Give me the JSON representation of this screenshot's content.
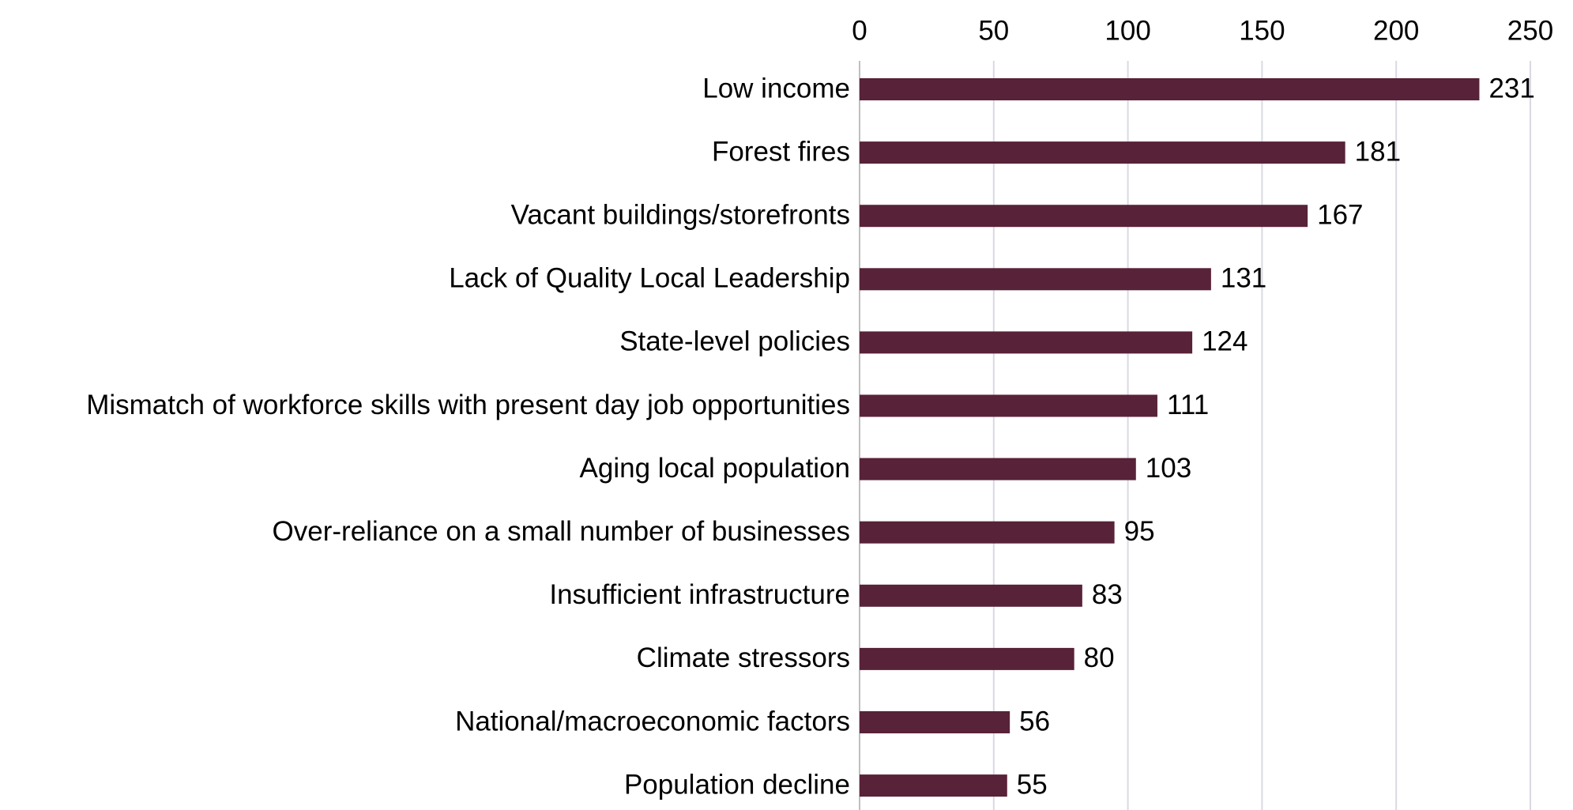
{
  "chart_data": {
    "type": "barh",
    "categories": [
      "Low income",
      "Forest fires",
      "Vacant buildings/storefronts",
      "Lack of Quality Local Leadership",
      "State-level policies",
      "Mismatch of workforce skills with present day job opportunities",
      "Aging local population",
      "Over-reliance on a small number of businesses",
      "Insufficient infrastructure",
      "Climate stressors",
      "National/macroeconomic factors",
      "Population decline"
    ],
    "values": [
      231,
      181,
      167,
      131,
      124,
      111,
      103,
      95,
      83,
      80,
      56,
      55
    ],
    "color": "#582238",
    "xlim": [
      0,
      250
    ],
    "xticks": [
      0,
      50,
      100,
      150,
      200,
      250
    ],
    "grid": true
  }
}
